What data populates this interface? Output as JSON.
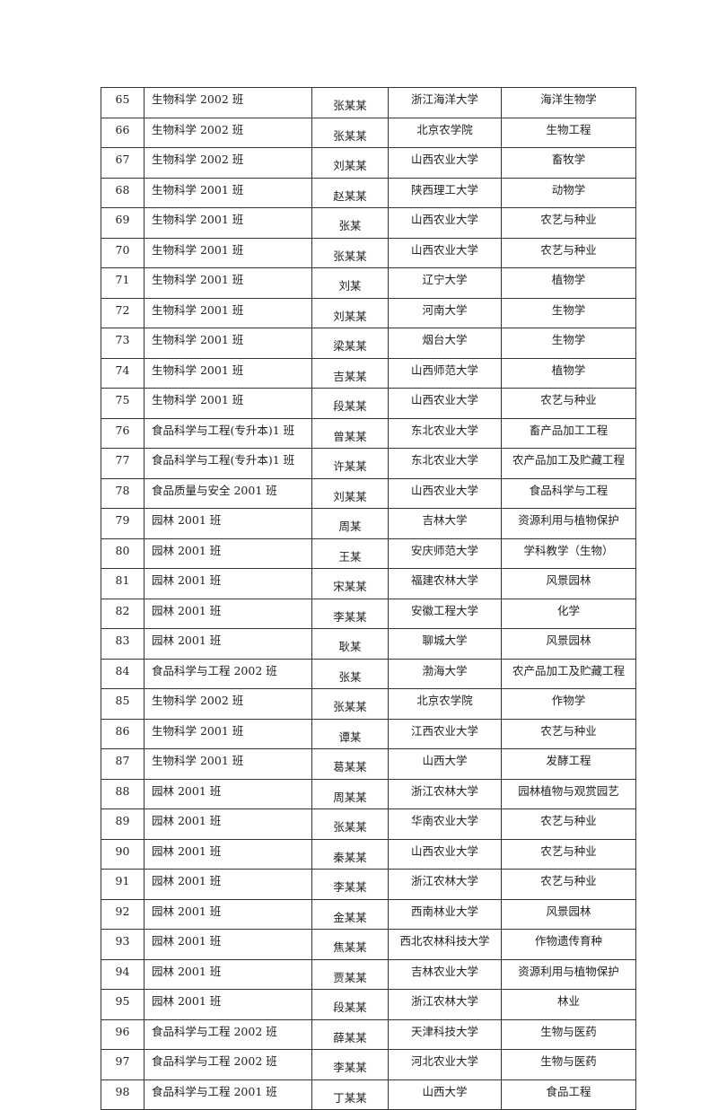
{
  "table": {
    "rows": [
      [
        "65",
        "生物科学 2002 班",
        "张某某",
        "浙江海洋大学",
        "海洋生物学"
      ],
      [
        "66",
        "生物科学 2002 班",
        "张某某",
        "北京农学院",
        "生物工程"
      ],
      [
        "67",
        "生物科学 2002 班",
        "刘某某",
        "山西农业大学",
        "畜牧学"
      ],
      [
        "68",
        "生物科学 2001 班",
        "赵某某",
        "陕西理工大学",
        "动物学"
      ],
      [
        "69",
        "生物科学 2001 班",
        "张某",
        "山西农业大学",
        "农艺与种业"
      ],
      [
        "70",
        "生物科学 2001 班",
        "张某某",
        "山西农业大学",
        "农艺与种业"
      ],
      [
        "71",
        "生物科学 2001 班",
        "刘某",
        "辽宁大学",
        "植物学"
      ],
      [
        "72",
        "生物科学 2001 班",
        "刘某某",
        "河南大学",
        "生物学"
      ],
      [
        "73",
        "生物科学 2001 班",
        "梁某某",
        "烟台大学",
        "生物学"
      ],
      [
        "74",
        "生物科学 2001 班",
        "吉某某",
        "山西师范大学",
        "植物学"
      ],
      [
        "75",
        "生物科学 2001 班",
        "段某某",
        "山西农业大学",
        "农艺与种业"
      ],
      [
        "76",
        "食品科学与工程(专升本)1 班",
        "曾某某",
        "东北农业大学",
        "畜产品加工工程"
      ],
      [
        "77",
        "食品科学与工程(专升本)1 班",
        "许某某",
        "东北农业大学",
        "农产品加工及贮藏工程"
      ],
      [
        "78",
        "食品质量与安全 2001 班",
        "刘某某",
        "山西农业大学",
        "食品科学与工程"
      ],
      [
        "79",
        "园林 2001 班",
        "周某",
        "吉林大学",
        "资源利用与植物保护"
      ],
      [
        "80",
        "园林 2001 班",
        "王某",
        "安庆师范大学",
        "学科教学（生物）"
      ],
      [
        "81",
        "园林 2001 班",
        "宋某某",
        "福建农林大学",
        "风景园林"
      ],
      [
        "82",
        "园林 2001 班",
        "李某某",
        "安徽工程大学",
        "化学"
      ],
      [
        "83",
        "园林 2001 班",
        "耿某",
        "聊城大学",
        "风景园林"
      ],
      [
        "84",
        "食品科学与工程 2002 班",
        "张某",
        "渤海大学",
        "农产品加工及贮藏工程"
      ],
      [
        "85",
        "生物科学 2002 班",
        "张某某",
        "北京农学院",
        "作物学"
      ],
      [
        "86",
        "生物科学 2001 班",
        "谭某",
        "江西农业大学",
        "农艺与种业"
      ],
      [
        "87",
        "生物科学 2001 班",
        "葛某某",
        "山西大学",
        "发酵工程"
      ],
      [
        "88",
        "园林 2001 班",
        "周某某",
        "浙江农林大学",
        "园林植物与观赏园艺"
      ],
      [
        "89",
        "园林 2001 班",
        "张某某",
        "华南农业大学",
        "农艺与种业"
      ],
      [
        "90",
        "园林 2001 班",
        "秦某某",
        "山西农业大学",
        "农艺与种业"
      ],
      [
        "91",
        "园林 2001 班",
        "李某某",
        "浙江农林大学",
        "农艺与种业"
      ],
      [
        "92",
        "园林 2001 班",
        "金某某",
        "西南林业大学",
        "风景园林"
      ],
      [
        "93",
        "园林 2001 班",
        "焦某某",
        "西北农林科技大学",
        "作物遗传育种"
      ],
      [
        "94",
        "园林 2001 班",
        "贾某某",
        "吉林农业大学",
        "资源利用与植物保护"
      ],
      [
        "95",
        "园林 2001 班",
        "段某某",
        "浙江农林大学",
        "林业"
      ],
      [
        "96",
        "食品科学与工程 2002 班",
        "薛某某",
        "天津科技大学",
        "生物与医药"
      ],
      [
        "97",
        "食品科学与工程 2002 班",
        "李某某",
        "河北农业大学",
        "生物与医药"
      ],
      [
        "98",
        "食品科学与工程 2001 班",
        "丁某某",
        "山西大学",
        "食品工程"
      ]
    ]
  }
}
